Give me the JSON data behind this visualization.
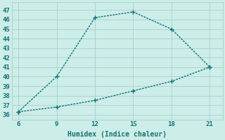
{
  "xlabel": "Humidex (Indice chaleur)",
  "line1_x": [
    6,
    9,
    12,
    15,
    18,
    21
  ],
  "line1_y": [
    36.3,
    40.0,
    46.2,
    46.8,
    45.0,
    41.0
  ],
  "line2_x": [
    6,
    9,
    12,
    15,
    18,
    21
  ],
  "line2_y": [
    36.3,
    36.8,
    37.5,
    38.5,
    39.5,
    41.0
  ],
  "line_color": "#1a7070",
  "bg_color": "#cceee8",
  "grid_color": "#aad4ce",
  "tick_color": "#1a7070",
  "xlabel_color": "#1a7070",
  "xlim": [
    5.5,
    22.0
  ],
  "ylim": [
    35.5,
    47.8
  ],
  "xticks": [
    6,
    9,
    12,
    15,
    18,
    21
  ],
  "yticks": [
    36,
    37,
    38,
    39,
    40,
    41,
    42,
    43,
    44,
    45,
    46,
    47
  ],
  "markersize": 4,
  "linewidth": 1.0
}
